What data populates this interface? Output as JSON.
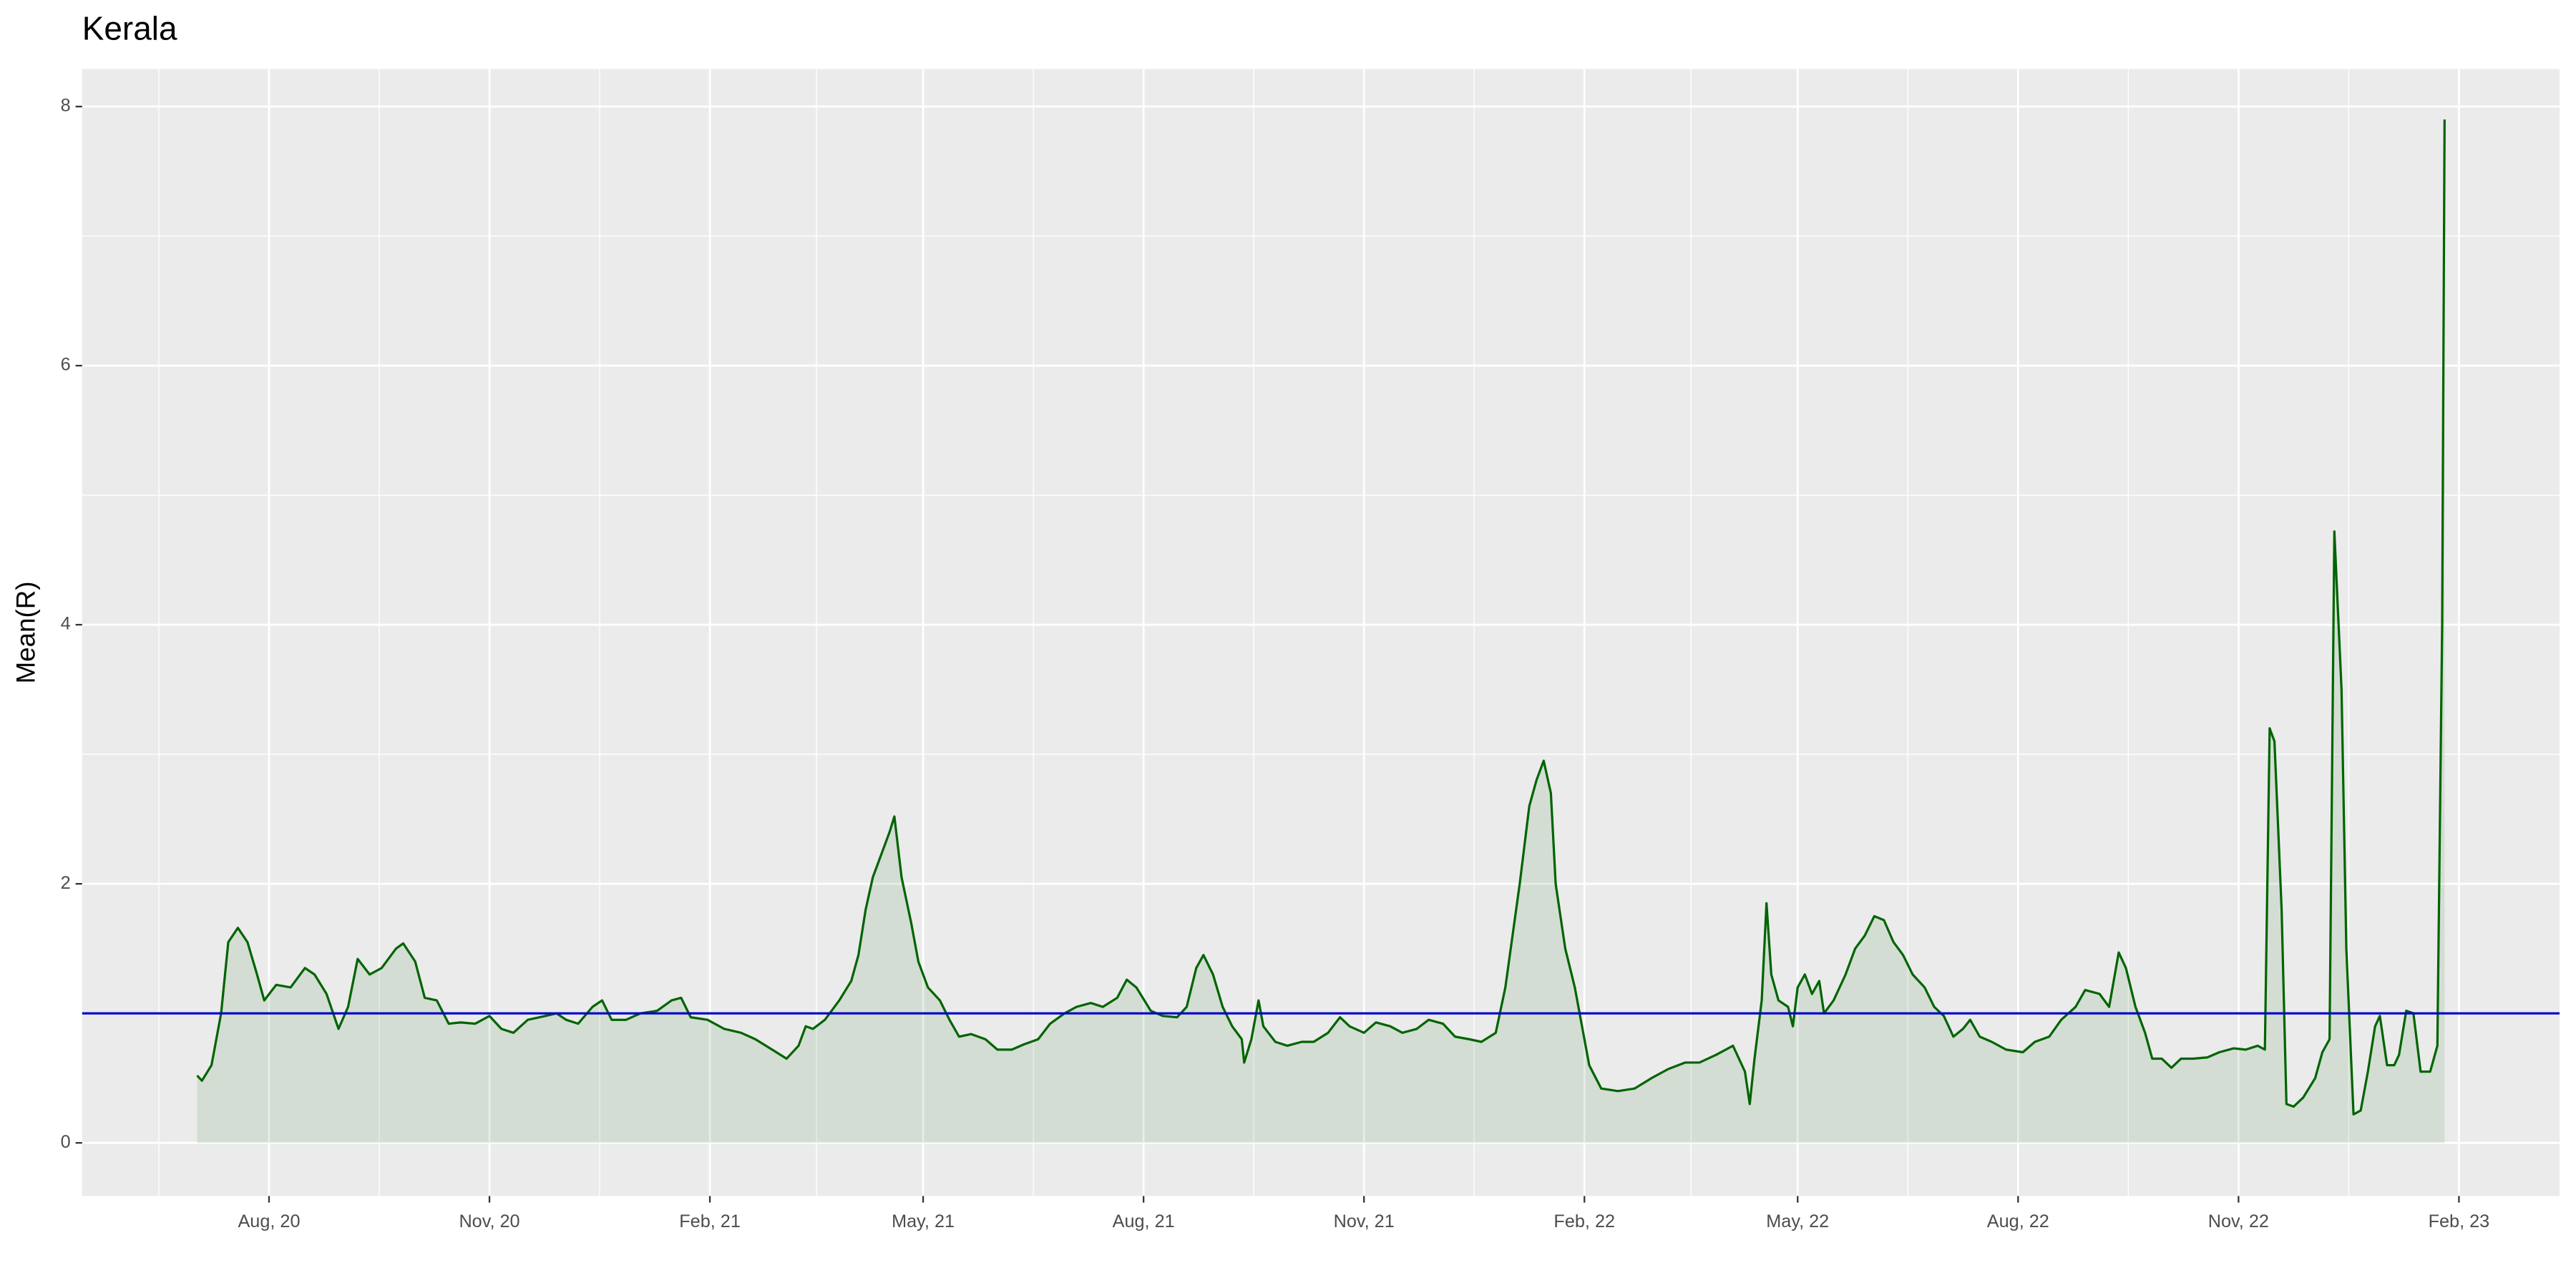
{
  "chart_data": {
    "type": "area-line",
    "title": "Kerala",
    "y_label": "Mean(R)",
    "line_color": "#006400",
    "fill_color": "#006400",
    "grid": true,
    "reference_line": {
      "value": 1,
      "color": "#0000cc"
    },
    "xlim": [
      "2020-05-15",
      "2023-03-15"
    ],
    "xticks": [
      {
        "value": "2020-08-01",
        "label": "Aug, 20"
      },
      {
        "value": "2020-11-01",
        "label": "Nov, 20"
      },
      {
        "value": "2021-02-01",
        "label": "Feb, 21"
      },
      {
        "value": "2021-05-01",
        "label": "May, 21"
      },
      {
        "value": "2021-08-01",
        "label": "Aug, 21"
      },
      {
        "value": "2021-11-01",
        "label": "Nov, 21"
      },
      {
        "value": "2022-02-01",
        "label": "Feb, 22"
      },
      {
        "value": "2022-05-01",
        "label": "May, 22"
      },
      {
        "value": "2022-08-01",
        "label": "Aug, 22"
      },
      {
        "value": "2022-11-01",
        "label": "Nov, 22"
      },
      {
        "value": "2023-02-01",
        "label": "Feb, 23"
      }
    ],
    "ylim": [
      -0.41,
      8.29
    ],
    "yticks": [
      0,
      2,
      4,
      6,
      8
    ],
    "x": [
      "2020-07-02",
      "2020-07-04",
      "2020-07-08",
      "2020-07-12",
      "2020-07-15",
      "2020-07-19",
      "2020-07-23",
      "2020-07-27",
      "2020-07-30",
      "2020-08-04",
      "2020-08-10",
      "2020-08-16",
      "2020-08-20",
      "2020-08-25",
      "2020-08-30",
      "2020-09-03",
      "2020-09-07",
      "2020-09-12",
      "2020-09-17",
      "2020-09-23",
      "2020-09-26",
      "2020-10-01",
      "2020-10-05",
      "2020-10-10",
      "2020-10-15",
      "2020-10-20",
      "2020-10-26",
      "2020-11-01",
      "2020-11-06",
      "2020-11-11",
      "2020-11-17",
      "2020-11-22",
      "2020-11-29",
      "2020-12-03",
      "2020-12-08",
      "2020-12-14",
      "2020-12-18",
      "2020-12-22",
      "2020-12-28",
      "2021-01-03",
      "2021-01-10",
      "2021-01-16",
      "2021-01-20",
      "2021-01-24",
      "2021-01-31",
      "2021-02-07",
      "2021-02-14",
      "2021-02-20",
      "2021-02-27",
      "2021-03-05",
      "2021-03-10",
      "2021-03-13",
      "2021-03-16",
      "2021-03-21",
      "2021-03-27",
      "2021-04-01",
      "2021-04-04",
      "2021-04-07",
      "2021-04-10",
      "2021-04-13",
      "2021-04-17",
      "2021-04-19",
      "2021-04-22",
      "2021-04-26",
      "2021-04-29",
      "2021-05-03",
      "2021-05-08",
      "2021-05-12",
      "2021-05-16",
      "2021-05-21",
      "2021-05-27",
      "2021-06-01",
      "2021-06-07",
      "2021-06-12",
      "2021-06-18",
      "2021-06-23",
      "2021-06-29",
      "2021-07-04",
      "2021-07-10",
      "2021-07-15",
      "2021-07-21",
      "2021-07-25",
      "2021-07-29",
      "2021-08-04",
      "2021-08-09",
      "2021-08-15",
      "2021-08-19",
      "2021-08-23",
      "2021-08-26",
      "2021-08-30",
      "2021-09-03",
      "2021-09-07",
      "2021-09-11",
      "2021-09-12",
      "2021-09-15",
      "2021-09-18",
      "2021-09-20",
      "2021-09-25",
      "2021-09-30",
      "2021-10-06",
      "2021-10-11",
      "2021-10-17",
      "2021-10-22",
      "2021-10-26",
      "2021-11-01",
      "2021-11-06",
      "2021-11-12",
      "2021-11-17",
      "2021-11-23",
      "2021-11-28",
      "2021-12-04",
      "2021-12-09",
      "2021-12-15",
      "2021-12-20",
      "2021-12-26",
      "2021-12-30",
      "2022-01-02",
      "2022-01-05",
      "2022-01-09",
      "2022-01-12",
      "2022-01-15",
      "2022-01-18",
      "2022-01-20",
      "2022-01-24",
      "2022-01-28",
      "2022-01-31",
      "2022-02-03",
      "2022-02-08",
      "2022-02-15",
      "2022-02-22",
      "2022-03-01",
      "2022-03-08",
      "2022-03-15",
      "2022-03-21",
      "2022-03-28",
      "2022-04-04",
      "2022-04-09",
      "2022-04-11",
      "2022-04-13",
      "2022-04-16",
      "2022-04-18",
      "2022-04-20",
      "2022-04-23",
      "2022-04-27",
      "2022-04-29",
      "2022-05-01",
      "2022-05-04",
      "2022-05-07",
      "2022-05-10",
      "2022-05-12",
      "2022-05-16",
      "2022-05-21",
      "2022-05-25",
      "2022-05-29",
      "2022-06-02",
      "2022-06-06",
      "2022-06-10",
      "2022-06-14",
      "2022-06-18",
      "2022-06-23",
      "2022-06-27",
      "2022-07-01",
      "2022-07-05",
      "2022-07-09",
      "2022-07-12",
      "2022-07-16",
      "2022-07-21",
      "2022-07-27",
      "2022-08-03",
      "2022-08-08",
      "2022-08-14",
      "2022-08-19",
      "2022-08-25",
      "2022-08-29",
      "2022-09-04",
      "2022-09-08",
      "2022-09-12",
      "2022-09-15",
      "2022-09-19",
      "2022-09-23",
      "2022-09-26",
      "2022-09-30",
      "2022-10-04",
      "2022-10-08",
      "2022-10-13",
      "2022-10-19",
      "2022-10-24",
      "2022-10-30",
      "2022-11-04",
      "2022-11-09",
      "2022-11-12",
      "2022-11-14",
      "2022-11-16",
      "2022-11-19",
      "2022-11-21",
      "2022-11-24",
      "2022-11-28",
      "2022-12-03",
      "2022-12-06",
      "2022-12-09",
      "2022-12-11",
      "2022-12-14",
      "2022-12-16",
      "2022-12-19",
      "2022-12-22",
      "2022-12-25",
      "2022-12-28",
      "2022-12-30",
      "2023-01-02",
      "2023-01-05",
      "2023-01-07",
      "2023-01-10",
      "2023-01-13",
      "2023-01-16",
      "2023-01-20",
      "2023-01-23",
      "2023-01-25",
      "2023-01-26"
    ],
    "values": [
      0.52,
      0.48,
      0.6,
      1.0,
      1.55,
      1.66,
      1.55,
      1.3,
      1.1,
      1.22,
      1.2,
      1.35,
      1.3,
      1.15,
      0.88,
      1.05,
      1.42,
      1.3,
      1.35,
      1.5,
      1.54,
      1.4,
      1.12,
      1.1,
      0.92,
      0.93,
      0.92,
      0.98,
      0.88,
      0.85,
      0.95,
      0.97,
      1.0,
      0.95,
      0.92,
      1.05,
      1.1,
      0.95,
      0.95,
      1.0,
      1.02,
      1.1,
      1.12,
      0.97,
      0.95,
      0.88,
      0.85,
      0.8,
      0.72,
      0.65,
      0.75,
      0.9,
      0.88,
      0.95,
      1.1,
      1.25,
      1.45,
      1.8,
      2.05,
      2.2,
      2.4,
      2.52,
      2.05,
      1.7,
      1.4,
      1.2,
      1.1,
      0.95,
      0.82,
      0.84,
      0.8,
      0.72,
      0.72,
      0.76,
      0.8,
      0.92,
      1.0,
      1.05,
      1.08,
      1.05,
      1.12,
      1.26,
      1.2,
      1.02,
      0.98,
      0.97,
      1.05,
      1.35,
      1.45,
      1.3,
      1.05,
      0.9,
      0.8,
      0.62,
      0.8,
      1.1,
      0.9,
      0.78,
      0.75,
      0.78,
      0.78,
      0.85,
      0.97,
      0.9,
      0.85,
      0.93,
      0.9,
      0.85,
      0.88,
      0.95,
      0.92,
      0.82,
      0.8,
      0.78,
      0.85,
      1.2,
      1.6,
      2.0,
      2.6,
      2.8,
      2.95,
      2.7,
      2.0,
      1.5,
      1.2,
      0.9,
      0.6,
      0.42,
      0.4,
      0.42,
      0.5,
      0.57,
      0.62,
      0.62,
      0.68,
      0.75,
      0.55,
      0.3,
      0.65,
      1.1,
      1.85,
      1.3,
      1.1,
      1.05,
      0.9,
      1.2,
      1.3,
      1.15,
      1.25,
      1.0,
      1.1,
      1.3,
      1.5,
      1.6,
      1.75,
      1.72,
      1.55,
      1.45,
      1.3,
      1.2,
      1.05,
      0.98,
      0.82,
      0.88,
      0.95,
      0.82,
      0.78,
      0.72,
      0.7,
      0.78,
      0.82,
      0.95,
      1.05,
      1.18,
      1.15,
      1.05,
      1.47,
      1.35,
      1.05,
      0.85,
      0.65,
      0.65,
      0.58,
      0.65,
      0.65,
      0.66,
      0.7,
      0.73,
      0.72,
      0.75,
      0.72,
      3.2,
      3.1,
      1.8,
      0.3,
      0.28,
      0.35,
      0.5,
      0.7,
      0.8,
      4.72,
      3.5,
      1.5,
      0.22,
      0.25,
      0.55,
      0.9,
      0.98,
      0.6,
      0.6,
      0.68,
      1.02,
      1.0,
      0.55,
      0.55,
      0.75,
      4.0,
      7.9
    ]
  }
}
